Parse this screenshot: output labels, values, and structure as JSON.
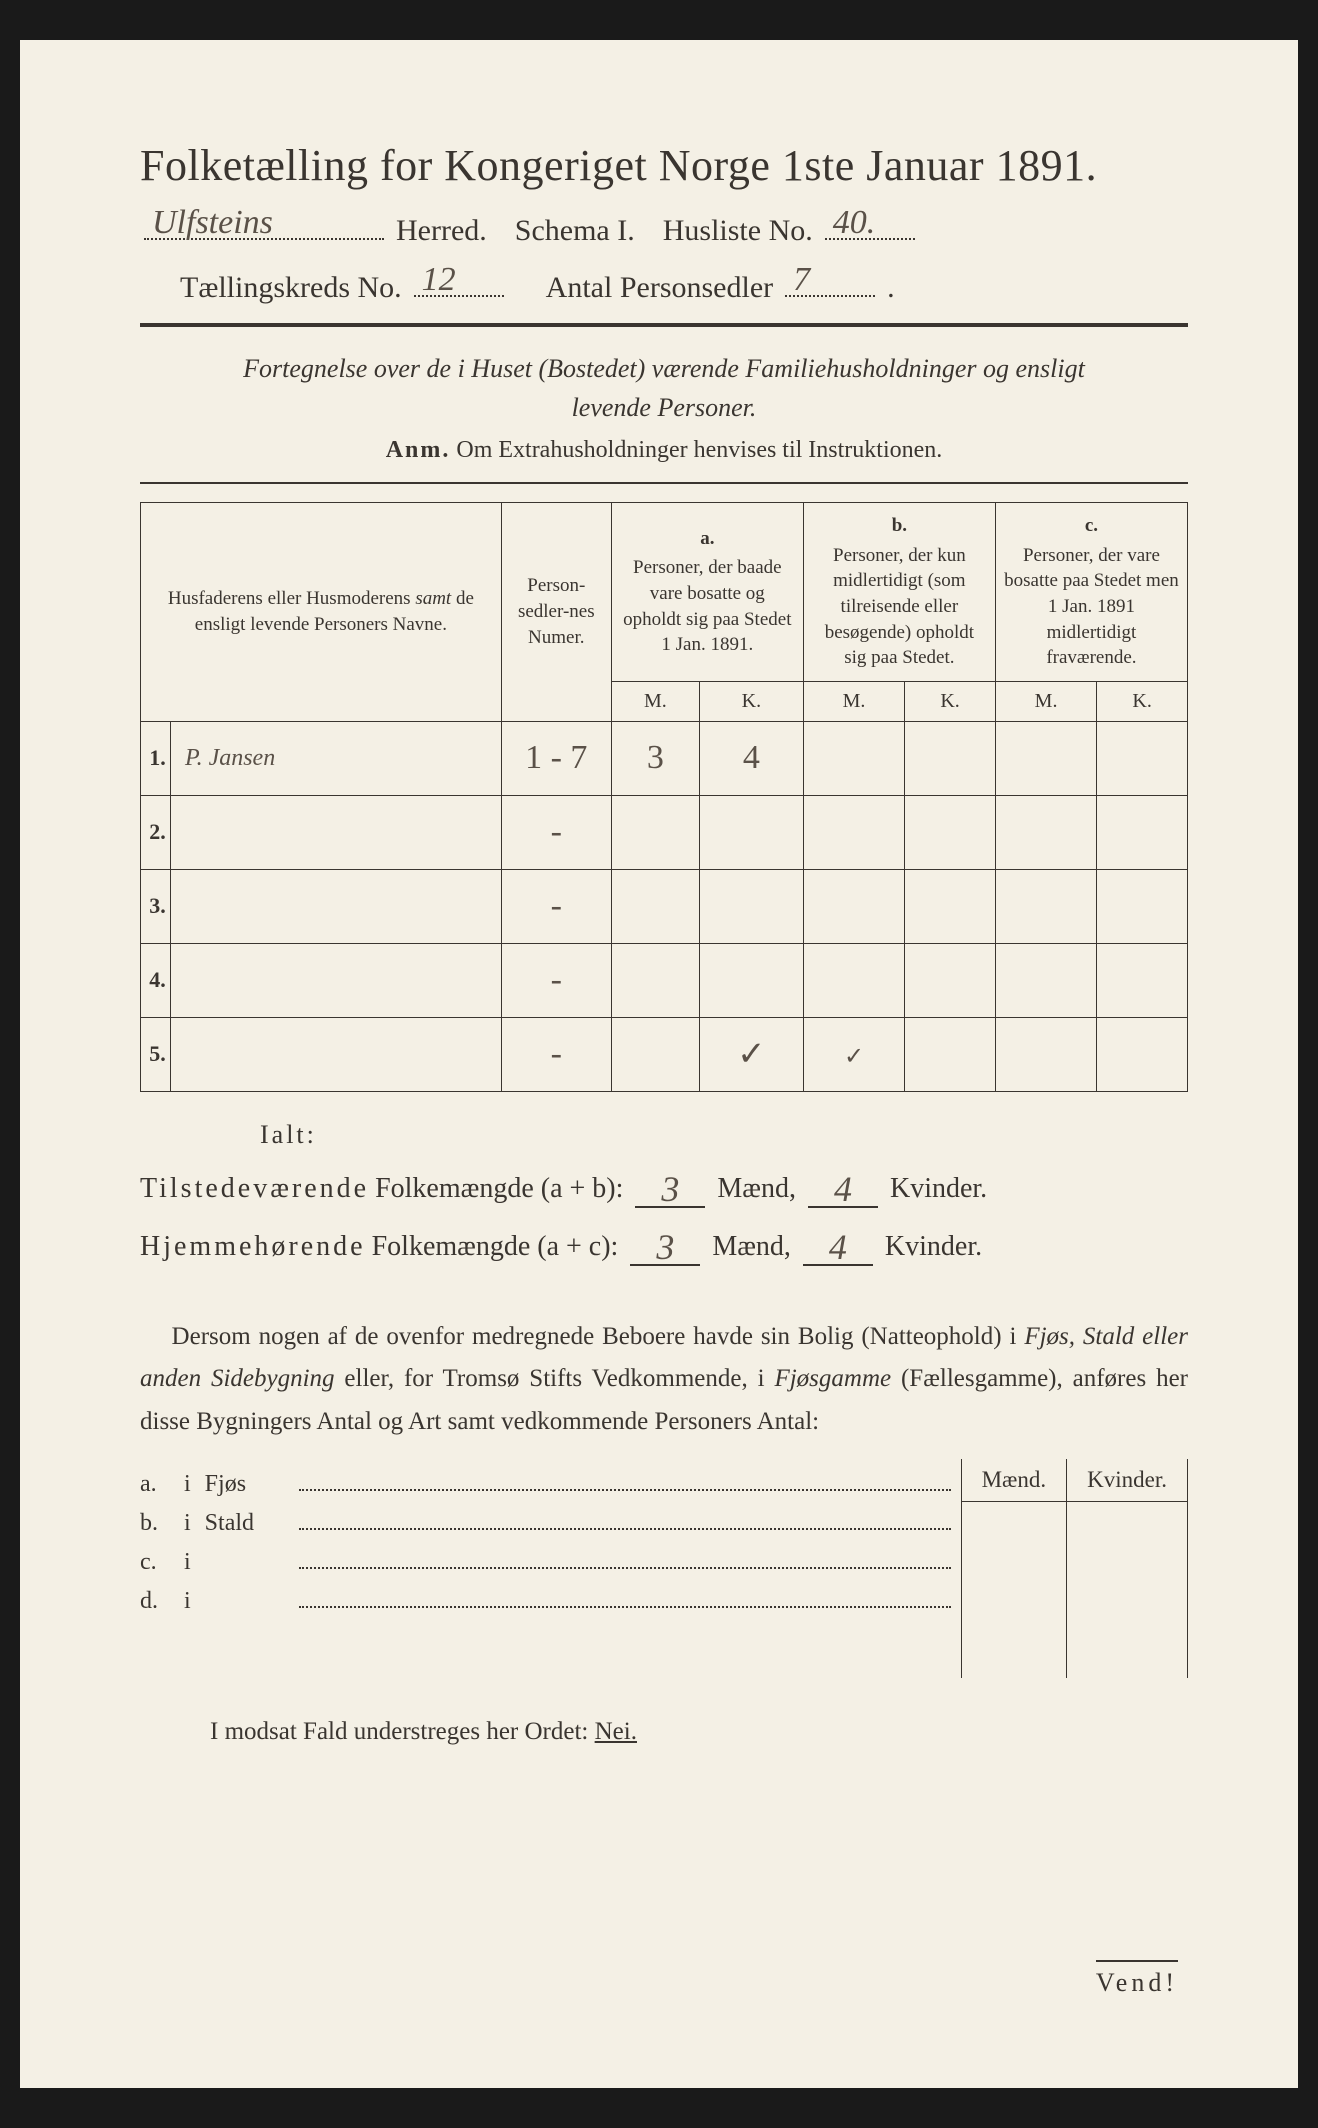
{
  "title": "Folketælling for Kongeriget Norge 1ste Januar 1891.",
  "header": {
    "herred_value": "Ulfsteins",
    "herred_label": "Herred.",
    "schema_label": "Schema I.",
    "husliste_label": "Husliste No.",
    "husliste_value": "40.",
    "kreds_label": "Tællingskreds No.",
    "kreds_value": "12",
    "antal_label": "Antal Personsedler",
    "antal_value": "7"
  },
  "intro": {
    "line1_a": "Fortegnelse over de i Huset (Bostedet) værende Familiehusholdninger og ensligt",
    "line2": "levende Personer."
  },
  "anm": {
    "prefix": "Anm.",
    "text": "Om Extrahusholdninger henvises til Instruktionen."
  },
  "table": {
    "col1": "Husfaderens eller Husmoderens samt de ensligt levende Personers Navne.",
    "col1_samt": "samt",
    "col2": "Person-sedler-nes Numer.",
    "col_a_label": "a.",
    "col_a_text": "Personer, der baade vare bosatte og opholdt sig paa Stedet 1 Jan. 1891.",
    "col_b_label": "b.",
    "col_b_text": "Personer, der kun midlertidigt (som tilreisende eller besøgende) opholdt sig paa Stedet.",
    "col_c_label": "c.",
    "col_c_text": "Personer, der vare bosatte paa Stedet men 1 Jan. 1891 midlertidigt fraværende.",
    "M": "M.",
    "K": "K.",
    "rows": [
      {
        "n": "1.",
        "name": "P. Jansen",
        "numer": "1 - 7",
        "aM": "3",
        "aK": "4",
        "bM": "",
        "bK": "",
        "cM": "",
        "cK": ""
      },
      {
        "n": "2.",
        "name": "",
        "numer": "-",
        "aM": "",
        "aK": "",
        "bM": "",
        "bK": "",
        "cM": "",
        "cK": ""
      },
      {
        "n": "3.",
        "name": "",
        "numer": "-",
        "aM": "",
        "aK": "",
        "bM": "",
        "bK": "",
        "cM": "",
        "cK": ""
      },
      {
        "n": "4.",
        "name": "",
        "numer": "-",
        "aM": "",
        "aK": "",
        "bM": "",
        "bK": "",
        "cM": "",
        "cK": ""
      },
      {
        "n": "5.",
        "name": "",
        "numer": "-",
        "aM": "",
        "aK": "✓",
        "bM": "✓",
        "bK": "",
        "cM": "",
        "cK": ""
      }
    ]
  },
  "totals": {
    "ialt": "Ialt:",
    "line1_a": "Tilstedeværende",
    "line1_b": "Folkemængde (a + b):",
    "line2_a": "Hjemmehørende",
    "line2_b": "Folkemængde (a + c):",
    "maend": "Mænd,",
    "kvinder": "Kvinder.",
    "t_m": "3",
    "t_k": "4",
    "h_m": "3",
    "h_k": "4"
  },
  "bodytext": "Dersom nogen af de ovenfor medregnede Beboere havde sin Bolig (Natteophold) i Fjøs, Stald eller anden Sidebygning eller, for Tromsø Stifts Vedkommende, i Fjøsgamme (Fællesgamme), anføres her disse Bygningers Antal og Art samt vedkommende Personers Antal:",
  "bldg": {
    "head_m": "Mænd.",
    "head_k": "Kvinder.",
    "rows": [
      {
        "lbl": "a.",
        "i": "i",
        "type": "Fjøs"
      },
      {
        "lbl": "b.",
        "i": "i",
        "type": "Stald"
      },
      {
        "lbl": "c.",
        "i": "i",
        "type": ""
      },
      {
        "lbl": "d.",
        "i": "i",
        "type": ""
      }
    ]
  },
  "nei": {
    "prefix": "I modsat Fald understreges her Ordet:",
    "word": "Nei."
  },
  "vend": "Vend!",
  "colors": {
    "paper": "#f4f0e5",
    "ink": "#3a3530",
    "handwriting": "#5a5148",
    "background": "#1a1a1a"
  }
}
